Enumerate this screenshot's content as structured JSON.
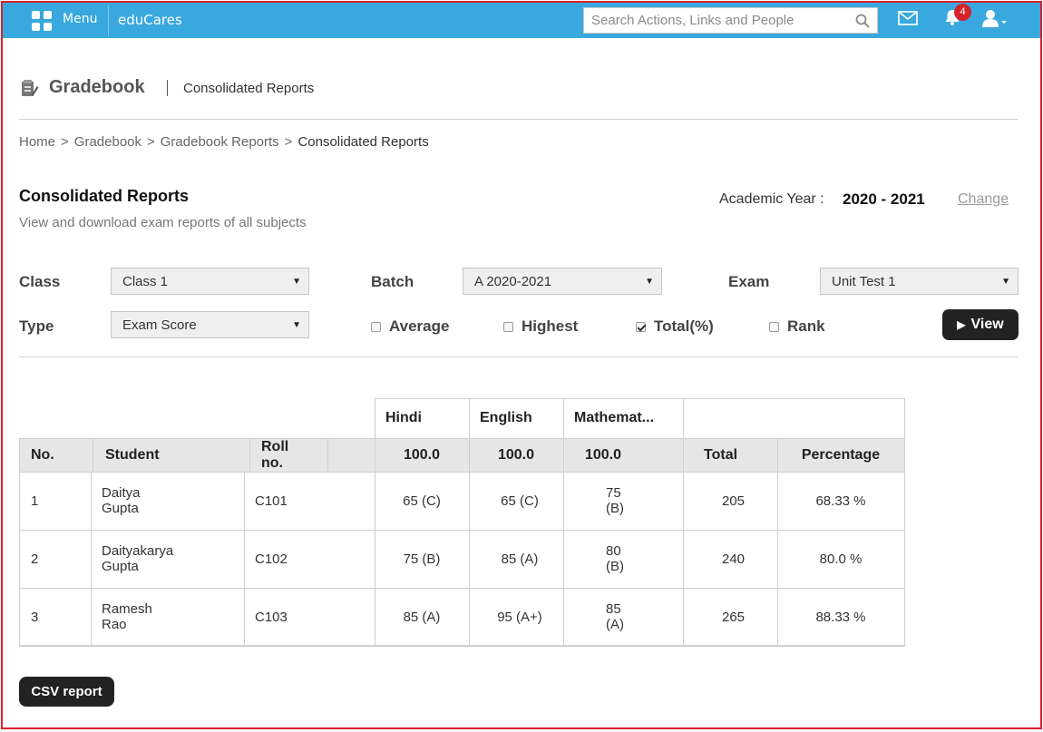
{
  "topbar": {
    "menu_label": "Menu",
    "brand": "eduCares",
    "search_placeholder": "Search Actions, Links and People",
    "notification_count": "4",
    "icons": [
      "grid-icon",
      "search-icon",
      "mail-icon",
      "bell-icon",
      "user-icon"
    ]
  },
  "page": {
    "title": "Gradebook",
    "subtitle": "Consolidated Reports"
  },
  "breadcrumb": [
    "Home",
    "Gradebook",
    "Gradebook Reports",
    "Consolidated Reports"
  ],
  "breadcrumb_sep": ">",
  "section": {
    "title": "Consolidated Reports",
    "description": "View and download exam reports of all subjects"
  },
  "academic_year": {
    "label": "Academic Year :",
    "value": "2020 - 2021",
    "change_label": "Change"
  },
  "filters": {
    "class_label": "Class",
    "class_value": "Class 1",
    "batch_label": "Batch",
    "batch_value": "A 2020-2021",
    "exam_label": "Exam",
    "exam_value": "Unit Test 1",
    "type_label": "Type",
    "type_value": "Exam Score",
    "options": [
      {
        "label": "Average",
        "checked": false
      },
      {
        "label": "Highest",
        "checked": false
      },
      {
        "label": "Total(%)",
        "checked": true
      },
      {
        "label": "Rank",
        "checked": false
      }
    ],
    "view_label": "View"
  },
  "table": {
    "subjects": [
      "Hindi",
      "English",
      "Mathemat..."
    ],
    "max_marks": [
      "100.0",
      "100.0",
      "100.0"
    ],
    "columns": {
      "no": "No.",
      "student": "Student",
      "roll": "Roll no.",
      "total": "Total",
      "percentage": "Percentage"
    },
    "rows": [
      {
        "no": "1",
        "student": "Daitya Gupta",
        "roll": "C101",
        "scores": [
          "65 (C)",
          "65 (C)",
          "75 (B)"
        ],
        "total": "205",
        "percentage": "68.33 %"
      },
      {
        "no": "2",
        "student": "Daityakarya Gupta",
        "roll": "C102",
        "scores": [
          "75 (B)",
          "85 (A)",
          "80 (B)"
        ],
        "total": "240",
        "percentage": "80.0 %"
      },
      {
        "no": "3",
        "student": "Ramesh Rao",
        "roll": "C103",
        "scores": [
          "85 (A)",
          "95 (A+)",
          "85 (A)"
        ],
        "total": "265",
        "percentage": "88.33 %"
      }
    ]
  },
  "csv_label": "CSV report"
}
